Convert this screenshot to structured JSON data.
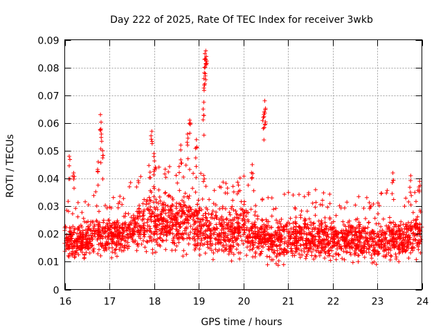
{
  "chart_data": {
    "type": "scatter",
    "title": "Day 222 of 2025, Rate Of TEC Index for receiver 3wkb",
    "xlabel": "GPS time / hours",
    "ylabel": "ROTI / TECUs",
    "xlim": [
      16,
      24
    ],
    "ylim": [
      0,
      0.09
    ],
    "xticks": [
      "16",
      "17",
      "18",
      "19",
      "20",
      "21",
      "22",
      "23",
      "24"
    ],
    "yticks": [
      "0",
      "0.01",
      "0.02",
      "0.03",
      "0.04",
      "0.05",
      "0.06",
      "0.07",
      "0.08",
      "0.09"
    ],
    "grid": true,
    "marker": "plus",
    "series": [
      {
        "name": "ROTI",
        "color": "#ff0000",
        "envelope_x": [
          16.0,
          16.25,
          16.5,
          16.75,
          17.0,
          17.25,
          17.5,
          17.75,
          18.0,
          18.25,
          18.5,
          18.75,
          19.0,
          19.25,
          19.5,
          19.75,
          20.0,
          20.25,
          20.5,
          20.75,
          21.0,
          21.25,
          21.5,
          21.75,
          22.0,
          22.25,
          22.5,
          22.75,
          23.0,
          23.25,
          23.5,
          23.75,
          24.0
        ],
        "typical_low": [
          0.01,
          0.008,
          0.009,
          0.009,
          0.01,
          0.009,
          0.009,
          0.009,
          0.009,
          0.01,
          0.009,
          0.009,
          0.009,
          0.009,
          0.009,
          0.008,
          0.009,
          0.009,
          0.008,
          0.007,
          0.008,
          0.008,
          0.008,
          0.008,
          0.007,
          0.007,
          0.007,
          0.007,
          0.007,
          0.007,
          0.007,
          0.008,
          0.008
        ],
        "typical_high": [
          0.027,
          0.025,
          0.028,
          0.03,
          0.029,
          0.03,
          0.034,
          0.038,
          0.04,
          0.04,
          0.038,
          0.04,
          0.038,
          0.036,
          0.034,
          0.034,
          0.036,
          0.03,
          0.028,
          0.028,
          0.029,
          0.029,
          0.031,
          0.03,
          0.028,
          0.028,
          0.029,
          0.028,
          0.029,
          0.03,
          0.029,
          0.03,
          0.032
        ],
        "spikes": [
          {
            "x": 16.1,
            "y": 0.048
          },
          {
            "x": 16.2,
            "y": 0.042
          },
          {
            "x": 16.75,
            "y": 0.046
          },
          {
            "x": 16.8,
            "y": 0.063
          },
          {
            "x": 16.82,
            "y": 0.056
          },
          {
            "x": 16.85,
            "y": 0.05
          },
          {
            "x": 17.95,
            "y": 0.057
          },
          {
            "x": 18.0,
            "y": 0.049
          },
          {
            "x": 18.6,
            "y": 0.052
          },
          {
            "x": 18.8,
            "y": 0.061
          },
          {
            "x": 18.75,
            "y": 0.056
          },
          {
            "x": 18.95,
            "y": 0.054
          },
          {
            "x": 19.1,
            "y": 0.065
          },
          {
            "x": 19.12,
            "y": 0.076
          },
          {
            "x": 19.13,
            "y": 0.08
          },
          {
            "x": 19.14,
            "y": 0.085
          },
          {
            "x": 19.16,
            "y": 0.086
          },
          {
            "x": 19.17,
            "y": 0.084
          },
          {
            "x": 20.2,
            "y": 0.045
          },
          {
            "x": 20.45,
            "y": 0.062
          },
          {
            "x": 20.47,
            "y": 0.064
          },
          {
            "x": 20.48,
            "y": 0.068
          },
          {
            "x": 23.35,
            "y": 0.042
          },
          {
            "x": 23.75,
            "y": 0.041
          },
          {
            "x": 23.95,
            "y": 0.039
          }
        ]
      }
    ]
  }
}
